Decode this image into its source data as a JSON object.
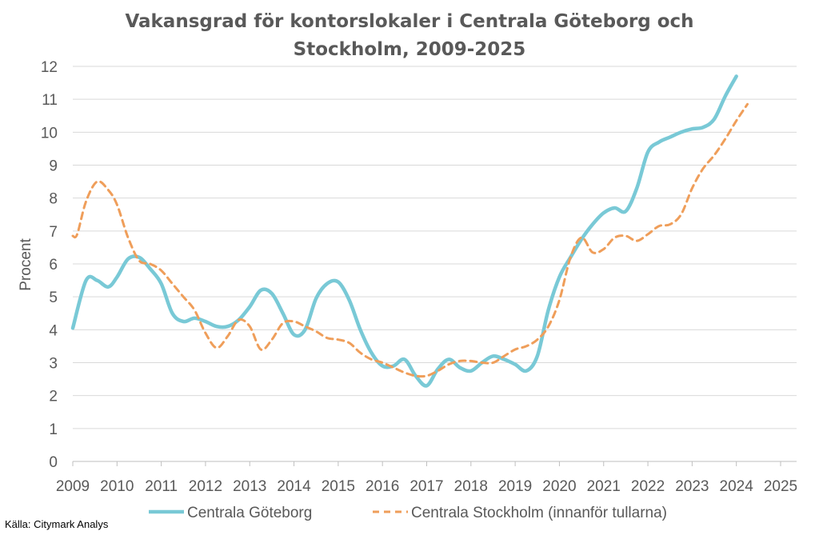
{
  "chart_data": {
    "type": "line",
    "title_lines": [
      "Vakansgrad för kontorslokaler i Centrala Göteborg och",
      "Stockholm, 2009-2025"
    ],
    "ylabel": "Procent",
    "xlabel": "",
    "ylim": [
      0,
      12
    ],
    "xlim": [
      2009,
      2025
    ],
    "yticks": [
      "0",
      "1",
      "2",
      "3",
      "4",
      "5",
      "6",
      "7",
      "8",
      "9",
      "10",
      "11",
      "12"
    ],
    "xticks": [
      "2009",
      "2010",
      "2011",
      "2012",
      "2013",
      "2014",
      "2015",
      "2016",
      "2017",
      "2018",
      "2019",
      "2020",
      "2021",
      "2022",
      "2023",
      "2024",
      "2025"
    ],
    "grid": true,
    "legend_position": "bottom",
    "series": [
      {
        "name": "Centrala Göteborg",
        "color": "#79c9d6",
        "style": "solid",
        "points": [
          [
            2009.0,
            4.05
          ],
          [
            2009.3,
            5.5
          ],
          [
            2009.55,
            5.5
          ],
          [
            2009.8,
            5.3
          ],
          [
            2010.0,
            5.6
          ],
          [
            2010.25,
            6.15
          ],
          [
            2010.5,
            6.2
          ],
          [
            2010.75,
            5.85
          ],
          [
            2011.0,
            5.4
          ],
          [
            2011.25,
            4.5
          ],
          [
            2011.5,
            4.25
          ],
          [
            2011.75,
            4.35
          ],
          [
            2012.0,
            4.25
          ],
          [
            2012.25,
            4.1
          ],
          [
            2012.5,
            4.1
          ],
          [
            2012.75,
            4.3
          ],
          [
            2013.0,
            4.7
          ],
          [
            2013.25,
            5.2
          ],
          [
            2013.5,
            5.1
          ],
          [
            2013.75,
            4.5
          ],
          [
            2014.0,
            3.85
          ],
          [
            2014.25,
            4.0
          ],
          [
            2014.5,
            4.95
          ],
          [
            2014.75,
            5.4
          ],
          [
            2015.0,
            5.45
          ],
          [
            2015.25,
            4.9
          ],
          [
            2015.5,
            4.0
          ],
          [
            2015.75,
            3.3
          ],
          [
            2016.0,
            2.9
          ],
          [
            2016.25,
            2.9
          ],
          [
            2016.5,
            3.1
          ],
          [
            2016.75,
            2.6
          ],
          [
            2017.0,
            2.3
          ],
          [
            2017.25,
            2.8
          ],
          [
            2017.5,
            3.1
          ],
          [
            2017.75,
            2.85
          ],
          [
            2018.0,
            2.75
          ],
          [
            2018.25,
            3.0
          ],
          [
            2018.5,
            3.2
          ],
          [
            2018.75,
            3.1
          ],
          [
            2019.0,
            2.95
          ],
          [
            2019.25,
            2.75
          ],
          [
            2019.5,
            3.2
          ],
          [
            2019.75,
            4.6
          ],
          [
            2020.0,
            5.6
          ],
          [
            2020.25,
            6.2
          ],
          [
            2020.5,
            6.75
          ],
          [
            2020.75,
            7.2
          ],
          [
            2021.0,
            7.55
          ],
          [
            2021.25,
            7.7
          ],
          [
            2021.5,
            7.6
          ],
          [
            2021.75,
            8.3
          ],
          [
            2022.0,
            9.4
          ],
          [
            2022.25,
            9.7
          ],
          [
            2022.5,
            9.85
          ],
          [
            2022.75,
            10.0
          ],
          [
            2023.0,
            10.1
          ],
          [
            2023.25,
            10.15
          ],
          [
            2023.5,
            10.4
          ],
          [
            2023.75,
            11.1
          ],
          [
            2024.0,
            11.7
          ]
        ]
      },
      {
        "name": "Centrala Stockholm (innanför tullarna)",
        "color": "#ef9e5a",
        "style": "dashed",
        "points": [
          [
            2009.0,
            6.85
          ],
          [
            2009.1,
            6.9
          ],
          [
            2009.3,
            7.9
          ],
          [
            2009.55,
            8.5
          ],
          [
            2009.8,
            8.25
          ],
          [
            2010.0,
            7.8
          ],
          [
            2010.25,
            6.8
          ],
          [
            2010.5,
            6.1
          ],
          [
            2010.75,
            6.0
          ],
          [
            2011.0,
            5.8
          ],
          [
            2011.25,
            5.4
          ],
          [
            2011.5,
            5.0
          ],
          [
            2011.75,
            4.6
          ],
          [
            2012.0,
            3.9
          ],
          [
            2012.25,
            3.45
          ],
          [
            2012.5,
            3.8
          ],
          [
            2012.75,
            4.3
          ],
          [
            2013.0,
            4.1
          ],
          [
            2013.25,
            3.4
          ],
          [
            2013.5,
            3.7
          ],
          [
            2013.75,
            4.2
          ],
          [
            2014.0,
            4.25
          ],
          [
            2014.25,
            4.1
          ],
          [
            2014.5,
            3.95
          ],
          [
            2014.75,
            3.75
          ],
          [
            2015.0,
            3.7
          ],
          [
            2015.25,
            3.6
          ],
          [
            2015.5,
            3.3
          ],
          [
            2015.75,
            3.1
          ],
          [
            2016.0,
            3.0
          ],
          [
            2016.25,
            2.85
          ],
          [
            2016.5,
            2.7
          ],
          [
            2016.75,
            2.6
          ],
          [
            2017.0,
            2.6
          ],
          [
            2017.25,
            2.75
          ],
          [
            2017.5,
            2.95
          ],
          [
            2017.75,
            3.05
          ],
          [
            2018.0,
            3.05
          ],
          [
            2018.25,
            3.0
          ],
          [
            2018.5,
            3.0
          ],
          [
            2018.75,
            3.2
          ],
          [
            2019.0,
            3.4
          ],
          [
            2019.25,
            3.5
          ],
          [
            2019.5,
            3.7
          ],
          [
            2019.75,
            4.1
          ],
          [
            2020.0,
            4.9
          ],
          [
            2020.25,
            6.2
          ],
          [
            2020.5,
            6.8
          ],
          [
            2020.75,
            6.35
          ],
          [
            2021.0,
            6.45
          ],
          [
            2021.25,
            6.8
          ],
          [
            2021.5,
            6.85
          ],
          [
            2021.75,
            6.7
          ],
          [
            2022.0,
            6.9
          ],
          [
            2022.25,
            7.15
          ],
          [
            2022.5,
            7.2
          ],
          [
            2022.75,
            7.5
          ],
          [
            2023.0,
            8.3
          ],
          [
            2023.25,
            8.9
          ],
          [
            2023.5,
            9.3
          ],
          [
            2023.75,
            9.8
          ],
          [
            2024.0,
            10.35
          ],
          [
            2024.25,
            10.85
          ]
        ]
      }
    ]
  },
  "source": "Källa: Citymark Analys"
}
